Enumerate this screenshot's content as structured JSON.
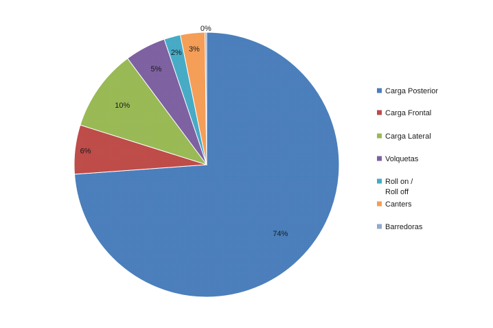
{
  "chart_data": {
    "type": "pie",
    "title": "",
    "legend_position": "right",
    "series": [
      {
        "values": [
          {
            "label": "Carga Posterior",
            "value": 74,
            "display": "74%",
            "color": "#4a7ebb"
          },
          {
            "label": "Carga Frontal",
            "value": 6,
            "display": "6%",
            "color": "#be4b48"
          },
          {
            "label": "Carga Lateral",
            "value": 10,
            "display": "10%",
            "color": "#98b954"
          },
          {
            "label": "Volquetas",
            "value": 5,
            "display": "5%",
            "color": "#7d60a0"
          },
          {
            "label": "Roll on / Roll off",
            "value": 2,
            "display": "2%",
            "color": "#46aac5"
          },
          {
            "label": "Canters",
            "value": 3,
            "display": "3%",
            "color": "#f59d56"
          },
          {
            "label": "Barredoras",
            "value": 0.2,
            "display": "0%",
            "color": "#92a9cf"
          }
        ]
      }
    ],
    "legend": [
      {
        "text": [
          "Carga Posterior"
        ],
        "color": "#4a7ebb"
      },
      {
        "text": [
          "Carga Frontal"
        ],
        "color": "#be4b48"
      },
      {
        "text": [
          "Carga Lateral"
        ],
        "color": "#98b954"
      },
      {
        "text": [
          "Volquetas"
        ],
        "color": "#7d60a0"
      },
      {
        "text": [
          "Roll on /",
          "Roll off"
        ],
        "color": "#46aac5"
      },
      {
        "text": [
          "Canters"
        ],
        "color": "#f59d56"
      },
      {
        "text": [
          "Barredoras"
        ],
        "color": "#92a9cf"
      }
    ]
  }
}
